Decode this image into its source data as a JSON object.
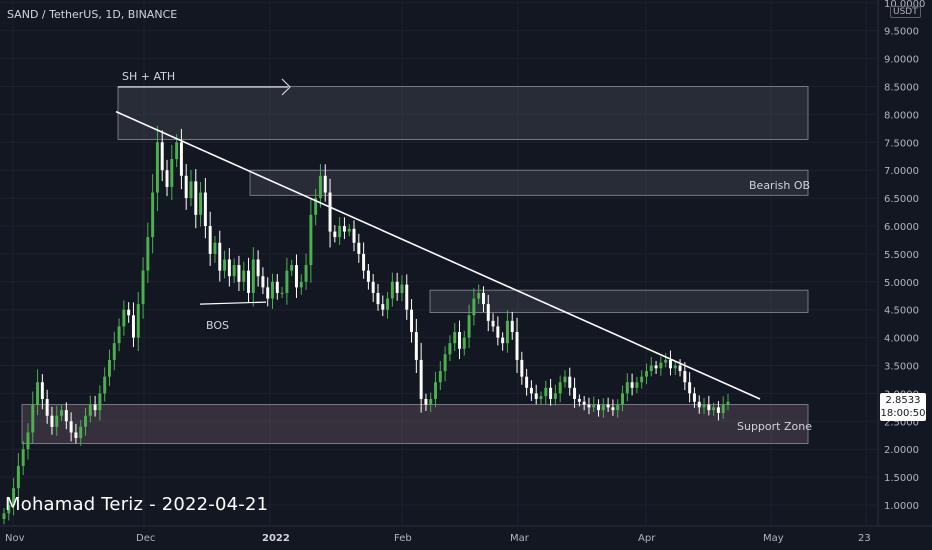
{
  "header": {
    "title": "SAND / TetherUS, 1D, BINANCE"
  },
  "watermark": "Mohamad Teriz - 2022-04-21",
  "colors": {
    "up": "#26a69a",
    "up_bright": "#4caf50",
    "down": "#ffffff",
    "background": "#131722",
    "zone_fill": "#434651"
  },
  "price_scale": {
    "currency": "USDT",
    "ticks": [
      "10.0000",
      "9.5000",
      "9.0000",
      "8.5000",
      "8.0000",
      "7.5000",
      "7.0000",
      "6.5000",
      "6.0000",
      "5.5000",
      "5.0000",
      "4.5000",
      "4.0000",
      "3.5000",
      "3.0000",
      "2.5000",
      "2.0000",
      "1.5000",
      "1.0000"
    ]
  },
  "time_scale": {
    "ticks": [
      "Nov",
      "Dec",
      "2022",
      "Feb",
      "Mar",
      "Apr",
      "May",
      "23"
    ]
  },
  "last_price": {
    "value": "2.8533",
    "countdown": "18:00:50"
  },
  "annotations": {
    "sh_ath": "SH + ATH",
    "bearish_ob": "Bearish OB",
    "bos": "BOS",
    "support_zone": "Support Zone"
  },
  "chart_data": {
    "type": "candlestick",
    "title": "SAND / TetherUS, 1D, BINANCE",
    "xlabel": "",
    "ylabel": "",
    "ylim": [
      0.7,
      10.0
    ],
    "x_ticks": [
      "Nov",
      "Dec",
      "2022",
      "Feb",
      "Mar",
      "Apr",
      "May",
      "23"
    ],
    "y_ticks": [
      1.0,
      1.5,
      2.0,
      2.5,
      3.0,
      3.5,
      4.0,
      4.5,
      5.0,
      5.5,
      6.0,
      6.5,
      7.0,
      7.5,
      8.0,
      8.5,
      9.0,
      9.5,
      10.0
    ],
    "close_series": [
      0.85,
      1.0,
      1.3,
      1.7,
      2.0,
      2.3,
      2.8,
      3.2,
      2.9,
      2.6,
      2.4,
      2.6,
      2.7,
      2.5,
      2.3,
      2.2,
      2.4,
      2.6,
      2.8,
      2.7,
      3.0,
      3.3,
      3.6,
      3.9,
      4.2,
      4.5,
      4.4,
      4.0,
      4.6,
      5.2,
      5.8,
      6.6,
      7.5,
      7.0,
      6.7,
      7.2,
      7.5,
      6.9,
      6.5,
      6.8,
      6.2,
      6.6,
      6.0,
      5.5,
      5.7,
      5.2,
      5.4,
      5.1,
      5.3,
      5.0,
      5.2,
      4.8,
      5.4,
      5.1,
      4.9,
      4.7,
      5.0,
      4.8,
      4.8,
      5.2,
      5.3,
      4.9,
      5.0,
      5.3,
      6.2,
      6.5,
      6.9,
      6.6,
      5.9,
      5.8,
      6.0,
      5.9,
      5.95,
      5.7,
      5.5,
      5.2,
      5.0,
      4.8,
      4.6,
      4.5,
      4.7,
      5.0,
      4.8,
      4.95,
      4.5,
      4.1,
      3.6,
      2.9,
      2.8,
      2.9,
      3.2,
      3.4,
      3.7,
      3.9,
      4.1,
      3.8,
      4.0,
      4.4,
      4.7,
      4.8,
      4.6,
      4.3,
      4.2,
      4.0,
      3.9,
      4.3,
      4.1,
      3.6,
      3.3,
      3.1,
      3.0,
      2.9,
      2.95,
      3.1,
      2.9,
      3.0,
      3.2,
      3.3,
      3.1,
      2.9,
      2.85,
      2.8,
      2.75,
      2.8,
      2.7,
      2.8,
      2.75,
      2.7,
      2.8,
      3.0,
      3.2,
      3.1,
      3.2,
      3.3,
      3.4,
      3.5,
      3.45,
      3.55,
      3.6,
      3.45,
      3.5,
      3.4,
      3.2,
      3.0,
      2.85,
      2.75,
      2.8,
      2.7,
      2.75,
      2.65,
      2.8,
      2.85
    ],
    "ath": 8.08,
    "trendline": [
      {
        "x": "Dec",
        "y": 8.05
      },
      {
        "x": "May",
        "y": 2.9
      }
    ],
    "zones": [
      {
        "label": "SH + ATH",
        "from": 7.55,
        "to": 8.5
      },
      {
        "label": "Bearish OB",
        "from": 6.55,
        "to": 7.0
      },
      {
        "label": "",
        "from": 4.45,
        "to": 4.85
      },
      {
        "label": "Support Zone",
        "from": 2.1,
        "to": 2.8
      }
    ],
    "levels": [
      {
        "label": "BOS",
        "y": 4.6
      }
    ]
  }
}
